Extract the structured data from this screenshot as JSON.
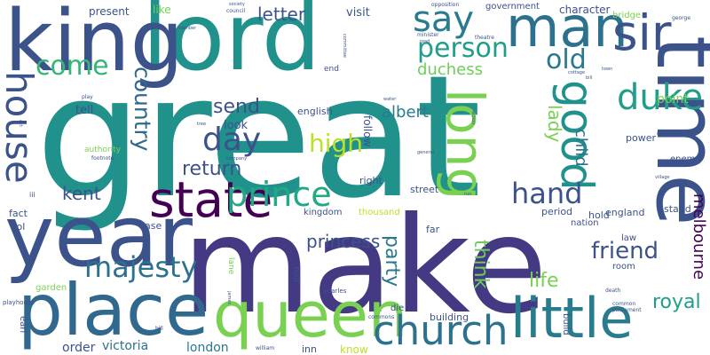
{
  "words": [
    {
      "text": "great",
      "color": "#21918c",
      "rotate": 0
    },
    {
      "text": "make",
      "color": "#443a83",
      "rotate": 0
    },
    {
      "text": "time",
      "color": "#3b528b",
      "rotate": 90
    },
    {
      "text": "lord",
      "color": "#21918c",
      "rotate": 0
    },
    {
      "text": "king",
      "color": "#3b528b",
      "rotate": 0
    },
    {
      "text": "year",
      "color": "#3b528b",
      "rotate": 0
    },
    {
      "text": "place",
      "color": "#31688e",
      "rotate": 0
    },
    {
      "text": "queen",
      "color": "#7ad151",
      "rotate": 0
    },
    {
      "text": "little",
      "color": "#287c8e",
      "rotate": 0
    },
    {
      "text": "man",
      "color": "#2c728e",
      "rotate": 0
    },
    {
      "text": "long",
      "color": "#7ad151",
      "rotate": 90
    },
    {
      "text": "state",
      "color": "#440154",
      "rotate": 0
    },
    {
      "text": "church",
      "color": "#2c728e",
      "rotate": 0
    },
    {
      "text": "sir",
      "color": "#3b528b",
      "rotate": 0
    },
    {
      "text": "good",
      "color": "#21918c",
      "rotate": 90
    },
    {
      "text": "house",
      "color": "#3b528b",
      "rotate": 90
    },
    {
      "text": "duke",
      "color": "#1f9e89",
      "rotate": 0
    },
    {
      "text": "say",
      "color": "#287c8e",
      "rotate": 0
    },
    {
      "text": "prince",
      "color": "#22a884",
      "rotate": 0
    },
    {
      "text": "person",
      "color": "#1f9e89",
      "rotate": 0
    },
    {
      "text": "day",
      "color": "#3b528b",
      "rotate": 0
    },
    {
      "text": "hand",
      "color": "#3b528b",
      "rotate": 0
    },
    {
      "text": "majesty",
      "color": "#2c728e",
      "rotate": 0
    },
    {
      "text": "country",
      "color": "#31688e",
      "rotate": 90
    },
    {
      "text": "come",
      "color": "#35b779",
      "rotate": 0
    },
    {
      "text": "old",
      "color": "#2a788e",
      "rotate": 0
    },
    {
      "text": "friend",
      "color": "#3b528b",
      "rotate": 0
    },
    {
      "text": "high",
      "color": "#bddf26",
      "rotate": 0
    },
    {
      "text": "return",
      "color": "#3b528b",
      "rotate": 0
    },
    {
      "text": "send",
      "color": "#3b528b",
      "rotate": 0
    },
    {
      "text": "royal",
      "color": "#1f9e89",
      "rotate": 0
    },
    {
      "text": "think",
      "color": "#6ece58",
      "rotate": 90
    },
    {
      "text": "party",
      "color": "#2a788e",
      "rotate": 90
    },
    {
      "text": "life",
      "color": "#7ad151",
      "rotate": 0
    },
    {
      "text": "princess",
      "color": "#3b528b",
      "rotate": 0
    },
    {
      "text": "kent",
      "color": "#3b528b",
      "rotate": 0
    },
    {
      "text": "letter",
      "color": "#3b528b",
      "rotate": 0
    },
    {
      "text": "duchess",
      "color": "#6ece58",
      "rotate": 0
    },
    {
      "text": "albert",
      "color": "#287c8e",
      "rotate": 0
    },
    {
      "text": "lady",
      "color": "#7ad151",
      "rotate": 90
    },
    {
      "text": "child",
      "color": "#2c728e",
      "rotate": 90
    },
    {
      "text": "melbourne",
      "color": "#440154",
      "rotate": 90
    },
    {
      "text": "victoria",
      "color": "#2c728e",
      "rotate": 0
    },
    {
      "text": "order",
      "color": "#3b528b",
      "rotate": 0
    },
    {
      "text": "london",
      "color": "#2a788e",
      "rotate": 0
    },
    {
      "text": "follow",
      "color": "#3b528b",
      "rotate": 90
    },
    {
      "text": "point",
      "color": "#7ad151",
      "rotate": 0
    },
    {
      "text": "look",
      "color": "#3b528b",
      "rotate": 0
    },
    {
      "text": "tell",
      "color": "#3b528b",
      "rotate": 0
    },
    {
      "text": "visit",
      "color": "#3b528b",
      "rotate": 0
    },
    {
      "text": "present",
      "color": "#3b528b",
      "rotate": 0
    },
    {
      "text": "like",
      "color": "#7ad151",
      "rotate": 0
    },
    {
      "text": "character",
      "color": "#3b528b",
      "rotate": 0
    },
    {
      "text": "government",
      "color": "#3b528b",
      "rotate": 0
    },
    {
      "text": "bridge",
      "color": "#7ad151",
      "rotate": 0
    },
    {
      "text": "english",
      "color": "#3b528b",
      "rotate": 0
    },
    {
      "text": "right",
      "color": "#3b528b",
      "rotate": 0
    },
    {
      "text": "street",
      "color": "#3b528b",
      "rotate": 0
    },
    {
      "text": "kingdom",
      "color": "#3b528b",
      "rotate": 0
    },
    {
      "text": "thousand",
      "color": "#bddf26",
      "rotate": 0
    },
    {
      "text": "period",
      "color": "#3b528b",
      "rotate": 0
    },
    {
      "text": "hold",
      "color": "#3b528b",
      "rotate": 0
    },
    {
      "text": "england",
      "color": "#3b528b",
      "rotate": 0
    },
    {
      "text": "nation",
      "color": "#3b528b",
      "rotate": 0
    },
    {
      "text": "stand",
      "color": "#3b528b",
      "rotate": 0
    },
    {
      "text": "power",
      "color": "#3b528b",
      "rotate": 0
    },
    {
      "text": "enemy",
      "color": "#3b528b",
      "rotate": 0
    },
    {
      "text": "law",
      "color": "#3b528b",
      "rotate": 0
    },
    {
      "text": "room",
      "color": "#3b528b",
      "rotate": 0
    },
    {
      "text": "far",
      "color": "#3b528b",
      "rotate": 0
    },
    {
      "text": "fact",
      "color": "#3b528b",
      "rotate": 0
    },
    {
      "text": "vol",
      "color": "#3b528b",
      "rotate": 0
    },
    {
      "text": "case",
      "color": "#3b528b",
      "rotate": 0
    },
    {
      "text": "garden",
      "color": "#7ad151",
      "rotate": 0
    },
    {
      "text": "authority",
      "color": "#7ad151",
      "rotate": 0
    },
    {
      "text": "hall",
      "color": "#3b528b",
      "rotate": 90
    },
    {
      "text": "lane",
      "color": "#7ad151",
      "rotate": 90
    },
    {
      "text": "die",
      "color": "#3b528b",
      "rotate": 0
    },
    {
      "text": "building",
      "color": "#3b528b",
      "rotate": 0
    },
    {
      "text": "know",
      "color": "#bddf26",
      "rotate": 0
    },
    {
      "text": "inn",
      "color": "#3b528b",
      "rotate": 0
    },
    {
      "text": "earl",
      "color": "#3b528b",
      "rotate": 90
    },
    {
      "text": "build",
      "color": "#3b528b",
      "rotate": 90
    },
    {
      "text": "end",
      "color": "#3b528b",
      "rotate": 0
    },
    {
      "text": "council",
      "color": "#3b528b",
      "rotate": 0
    },
    {
      "text": "minister",
      "color": "#3b528b",
      "rotate": 0
    },
    {
      "text": "theatre",
      "color": "#3b528b",
      "rotate": 0
    },
    {
      "text": "opposition",
      "color": "#3b528b",
      "rotate": 0
    },
    {
      "text": "committee",
      "color": "#3b528b",
      "rotate": 90
    },
    {
      "text": "road",
      "color": "#3b528b",
      "rotate": 0
    },
    {
      "text": "george",
      "color": "#3b528b",
      "rotate": 0
    },
    {
      "text": "member",
      "color": "#3b528b",
      "rotate": 0
    },
    {
      "text": "cottage",
      "color": "#3b528b",
      "rotate": 0
    },
    {
      "text": "town",
      "color": "#3b528b",
      "rotate": 0
    },
    {
      "text": "bill",
      "color": "#3b528b",
      "rotate": 0
    },
    {
      "text": "water",
      "color": "#3b528b",
      "rotate": 0
    },
    {
      "text": "general",
      "color": "#3b528b",
      "rotate": 0
    },
    {
      "text": "action",
      "color": "#3b528b",
      "rotate": 90
    },
    {
      "text": "play",
      "color": "#3b528b",
      "rotate": 0
    },
    {
      "text": "footnote",
      "color": "#3b528b",
      "rotate": 0
    },
    {
      "text": "act",
      "color": "#3b528b",
      "rotate": 90
    },
    {
      "text": "company",
      "color": "#3b528b",
      "rotate": 0
    },
    {
      "text": "run",
      "color": "#3b528b",
      "rotate": 0
    },
    {
      "text": "village",
      "color": "#3b528b",
      "rotate": 0
    },
    {
      "text": "measure",
      "color": "#3b528b",
      "rotate": 0
    },
    {
      "text": "iii",
      "color": "#3b528b",
      "rotate": 0
    },
    {
      "text": "playhouse",
      "color": "#3b528b",
      "rotate": 0
    },
    {
      "text": "charles",
      "color": "#3b528b",
      "rotate": 0
    },
    {
      "text": "commons",
      "color": "#3b528b",
      "rotate": 0
    },
    {
      "text": "common",
      "color": "#3b528b",
      "rotate": 0
    },
    {
      "text": "parliament",
      "color": "#3b528b",
      "rotate": 0
    },
    {
      "text": "death",
      "color": "#3b528b",
      "rotate": 0
    },
    {
      "text": "william",
      "color": "#3b528b",
      "rotate": 0
    },
    {
      "text": "james",
      "color": "#3b528b",
      "rotate": 90
    },
    {
      "text": "bill",
      "color": "#3b528b",
      "rotate": 0
    },
    {
      "text": "tree",
      "color": "#3b528b",
      "rotate": 0
    },
    {
      "text": "society",
      "color": "#3b528b",
      "rotate": 0
    }
  ]
}
